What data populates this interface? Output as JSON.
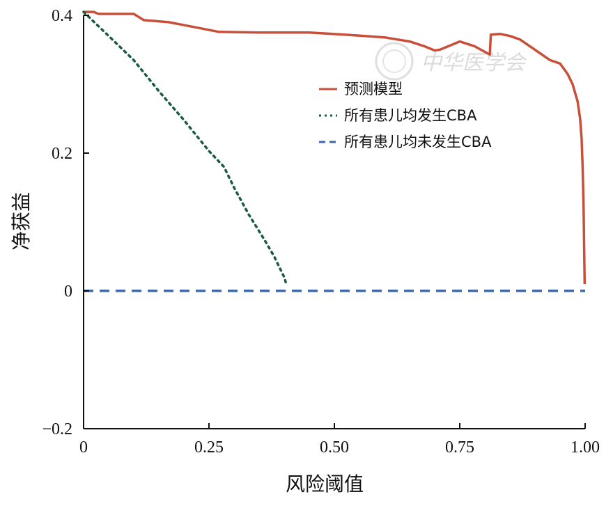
{
  "chart_data": {
    "type": "line",
    "xlabel": "风险阈值",
    "ylabel": "净获益",
    "xlim": [
      0,
      1.0
    ],
    "ylim": [
      -0.2,
      0.4
    ],
    "x_ticks": [
      0,
      0.25,
      0.5,
      0.75,
      1.0
    ],
    "x_tick_labels": [
      "0",
      "0.25",
      "0.50",
      "0.75",
      "1.00"
    ],
    "y_ticks": [
      -0.2,
      0,
      0.2,
      0.4
    ],
    "y_tick_labels": [
      "−0.2",
      "0",
      "0.2",
      "0.4"
    ],
    "grid": false,
    "legend_position": "top-right",
    "series": [
      {
        "name": "预测模型",
        "color": "#c8503a",
        "style": "solid",
        "points": [
          [
            0.0,
            0.405
          ],
          [
            0.02,
            0.405
          ],
          [
            0.03,
            0.402
          ],
          [
            0.1,
            0.402
          ],
          [
            0.12,
            0.393
          ],
          [
            0.17,
            0.39
          ],
          [
            0.22,
            0.383
          ],
          [
            0.27,
            0.376
          ],
          [
            0.35,
            0.375
          ],
          [
            0.45,
            0.375
          ],
          [
            0.52,
            0.372
          ],
          [
            0.6,
            0.368
          ],
          [
            0.65,
            0.362
          ],
          [
            0.68,
            0.355
          ],
          [
            0.7,
            0.349
          ],
          [
            0.71,
            0.35
          ],
          [
            0.73,
            0.356
          ],
          [
            0.75,
            0.362
          ],
          [
            0.78,
            0.355
          ],
          [
            0.8,
            0.347
          ],
          [
            0.81,
            0.343
          ],
          [
            0.812,
            0.372
          ],
          [
            0.83,
            0.373
          ],
          [
            0.85,
            0.37
          ],
          [
            0.87,
            0.365
          ],
          [
            0.89,
            0.355
          ],
          [
            0.91,
            0.345
          ],
          [
            0.93,
            0.335
          ],
          [
            0.95,
            0.33
          ],
          [
            0.965,
            0.315
          ],
          [
            0.975,
            0.3
          ],
          [
            0.985,
            0.275
          ],
          [
            0.99,
            0.25
          ],
          [
            0.993,
            0.22
          ],
          [
            0.995,
            0.18
          ],
          [
            0.997,
            0.12
          ],
          [
            0.999,
            0.01
          ]
        ]
      },
      {
        "name": "所有患儿均发生CBA",
        "color": "#1a5c3e",
        "style": "dotted",
        "points": [
          [
            0.0,
            0.405
          ],
          [
            0.05,
            0.37
          ],
          [
            0.1,
            0.335
          ],
          [
            0.15,
            0.29
          ],
          [
            0.2,
            0.248
          ],
          [
            0.25,
            0.203
          ],
          [
            0.28,
            0.18
          ],
          [
            0.3,
            0.15
          ],
          [
            0.33,
            0.11
          ],
          [
            0.36,
            0.075
          ],
          [
            0.38,
            0.05
          ],
          [
            0.4,
            0.02
          ],
          [
            0.405,
            0.008
          ]
        ]
      },
      {
        "name": "所有患儿均未发生CBA",
        "color": "#3a6ab0",
        "style": "dashed",
        "points": [
          [
            0.0,
            0.0
          ],
          [
            1.0,
            0.0
          ]
        ]
      }
    ]
  },
  "watermark": {
    "text": "中华医学会"
  }
}
